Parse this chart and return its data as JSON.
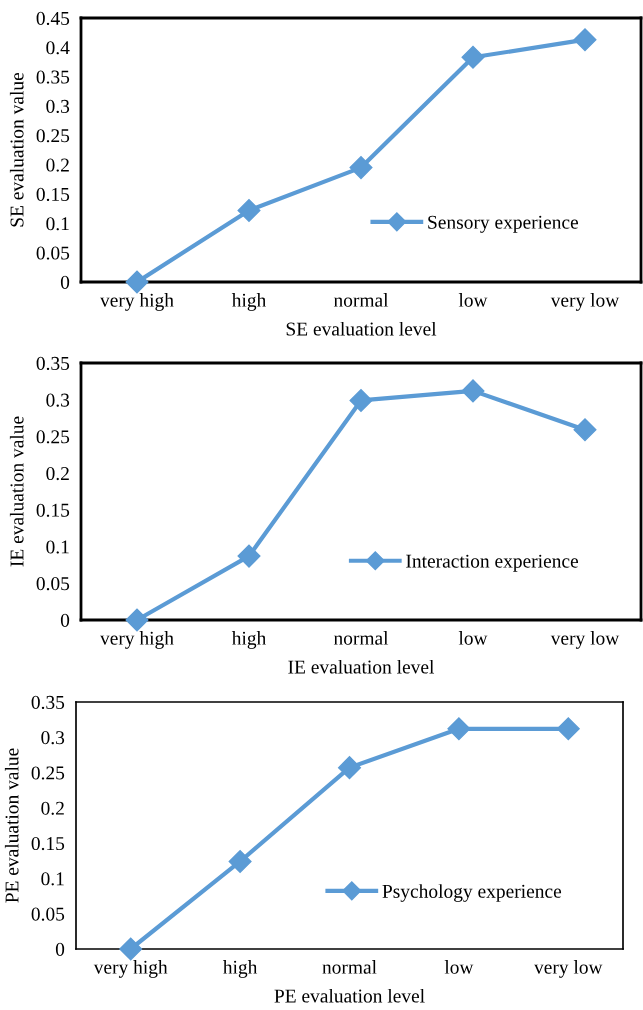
{
  "chart_data": [
    {
      "type": "line",
      "xlabel": "SE evaluation level",
      "ylabel": "SE evaluation value",
      "categories": [
        "very high",
        "high",
        "normal",
        "low",
        "very low"
      ],
      "series": [
        {
          "name": "Sensory experience",
          "color": "#5b9bd5",
          "values": [
            0,
            0.122,
            0.195,
            0.383,
            0.413
          ]
        }
      ],
      "ylim": [
        0,
        0.45
      ],
      "yticks": [
        0,
        0.05,
        0.1,
        0.15,
        0.2,
        0.25,
        0.3,
        0.35,
        0.4,
        0.45
      ],
      "grid": false,
      "legend": "bottom right",
      "marker": "diamond",
      "line_style": "solid"
    },
    {
      "type": "line",
      "xlabel": "IE evaluation level",
      "ylabel": "IE evaluation value",
      "categories": [
        "very high",
        "high",
        "normal",
        "low",
        "very low"
      ],
      "series": [
        {
          "name": "Interaction experience",
          "color": "#5b9bd5",
          "values": [
            0,
            0.087,
            0.299,
            0.312,
            0.259
          ]
        }
      ],
      "ylim": [
        0,
        0.35
      ],
      "yticks": [
        0,
        0.05,
        0.1,
        0.15,
        0.2,
        0.25,
        0.3,
        0.35
      ],
      "grid": false,
      "legend": "bottom right",
      "marker": "diamond",
      "line_style": "solid"
    },
    {
      "type": "line",
      "xlabel": "PE evaluation level",
      "ylabel": "PE evaluation value",
      "categories": [
        "very high",
        "high",
        "normal",
        "low",
        "very low"
      ],
      "series": [
        {
          "name": "Psychology experience",
          "color": "#5b9bd5",
          "values": [
            0,
            0.124,
            0.257,
            0.312,
            0.312
          ]
        }
      ],
      "ylim": [
        0,
        0.35
      ],
      "yticks": [
        0,
        0.05,
        0.1,
        0.15,
        0.2,
        0.25,
        0.3,
        0.35
      ],
      "grid": false,
      "legend": "bottom right",
      "marker": "diamond",
      "line_style": "solid"
    }
  ]
}
